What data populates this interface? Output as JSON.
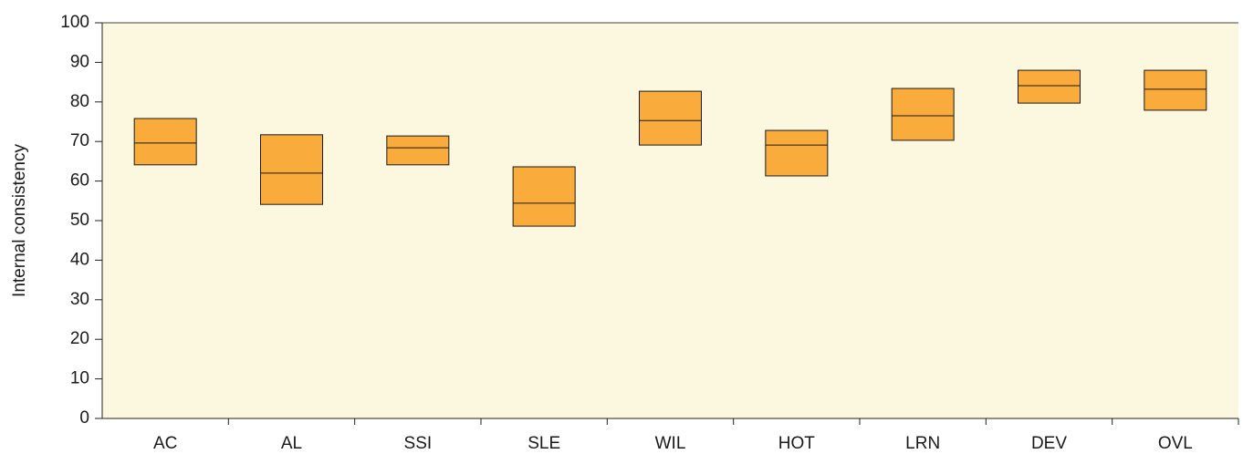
{
  "chart_data": {
    "type": "box",
    "y_label": "Internal consistency",
    "categories": [
      "AC",
      "AL",
      "SSI",
      "SLE",
      "WIL",
      "HOT",
      "LRN",
      "DEV",
      "OVL"
    ],
    "low": [
      64.1,
      54.1,
      64.1,
      48.6,
      69.1,
      61.3,
      70.3,
      79.7,
      77.9
    ],
    "median": [
      69.6,
      62.0,
      68.4,
      54.4,
      75.3,
      69.1,
      76.5,
      84.1,
      83.2
    ],
    "high": [
      75.8,
      71.7,
      71.4,
      63.6,
      82.7,
      72.8,
      83.4,
      88.0,
      88.0
    ],
    "color": "#f9ab3c",
    "background": "#fcf8df",
    "ylim": [
      0,
      100
    ],
    "yticks": [
      0,
      10,
      20,
      30,
      40,
      50,
      60,
      70,
      80,
      90,
      100
    ]
  }
}
